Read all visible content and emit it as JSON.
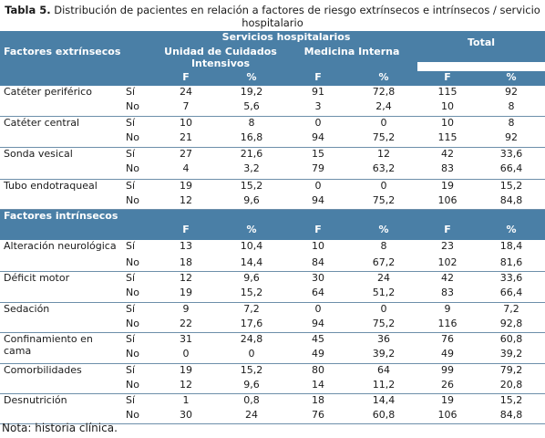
{
  "caption": {
    "label": "Tabla 5.",
    "text": " Distribución de pacientes en relación a factores de riesgo extrínsecos e intrínsecos / servicio hospitalario"
  },
  "header": {
    "group": "Servicios hospitalarios",
    "extrinsic": "Factores extrínsecos",
    "uci": "Unidad de Cuidados Intensivos",
    "mi": "Medicina Interna",
    "total": "Total",
    "f": "F",
    "pct": "%"
  },
  "intrinsic_header": "Factores  intrínsecos",
  "extrinsic_rows": [
    {
      "label": "Catéter periférico",
      "si": {
        "tag": "Sí",
        "v": [
          "24",
          "19,2",
          "91",
          "72,8",
          "115",
          "92"
        ]
      },
      "no": {
        "tag": "No",
        "v": [
          "7",
          "5,6",
          "3",
          "2,4",
          "10",
          "8"
        ]
      }
    },
    {
      "label": "Catéter central",
      "si": {
        "tag": "Sí",
        "v": [
          "10",
          "8",
          "0",
          "0",
          "10",
          "8"
        ]
      },
      "no": {
        "tag": "No",
        "v": [
          "21",
          "16,8",
          "94",
          "75,2",
          "115",
          "92"
        ]
      }
    },
    {
      "label": "Sonda vesical",
      "si": {
        "tag": "Sí",
        "v": [
          "27",
          "21,6",
          "15",
          "12",
          "42",
          "33,6"
        ]
      },
      "no": {
        "tag": "No",
        "v": [
          "4",
          "3,2",
          "79",
          "63,2",
          "83",
          "66,4"
        ]
      }
    },
    {
      "label": "Tubo endotraqueal",
      "si": {
        "tag": "Sí",
        "v": [
          "19",
          "15,2",
          "0",
          "0",
          "19",
          "15,2"
        ]
      },
      "no": {
        "tag": "No",
        "v": [
          "12",
          "9,6",
          "94",
          "75,2",
          "106",
          "84,8"
        ]
      }
    }
  ],
  "intrinsic_rows": [
    {
      "label": "Alteración neurológica",
      "si": {
        "tag": "Sí",
        "v": [
          "13",
          "10,4",
          "10",
          "8",
          "23",
          "18,4"
        ]
      },
      "no": {
        "tag": "No",
        "v": [
          "18",
          "14,4",
          "84",
          "67,2",
          "102",
          "81,6"
        ]
      }
    },
    {
      "label": "Déficit motor",
      "si": {
        "tag": "Sí",
        "v": [
          "12",
          "9,6",
          "30",
          "24",
          "42",
          "33,6"
        ]
      },
      "no": {
        "tag": "No",
        "v": [
          "19",
          "15,2",
          "64",
          "51,2",
          "83",
          "66,4"
        ]
      }
    },
    {
      "label": "Sedación",
      "si": {
        "tag": "Sí",
        "v": [
          "9",
          "7,2",
          "0",
          "0",
          "9",
          "7,2"
        ]
      },
      "no": {
        "tag": "No",
        "v": [
          "22",
          "17,6",
          "94",
          "75,2",
          "116",
          "92,8"
        ]
      }
    },
    {
      "label": "Confinamiento en cama",
      "si": {
        "tag": "Sí",
        "v": [
          "31",
          "24,8",
          "45",
          "36",
          "76",
          "60,8"
        ]
      },
      "no": {
        "tag": "No",
        "v": [
          "0",
          "0",
          "49",
          "39,2",
          "49",
          "39,2"
        ]
      }
    },
    {
      "label": "Comorbilidades",
      "si": {
        "tag": "Sí",
        "v": [
          "19",
          "15,2",
          "80",
          "64",
          "99",
          "79,2"
        ]
      },
      "no": {
        "tag": "No",
        "v": [
          "12",
          "9,6",
          "14",
          "11,2",
          "26",
          "20,8"
        ]
      }
    },
    {
      "label": "Desnutrición",
      "si": {
        "tag": "Sí",
        "v": [
          "1",
          "0,8",
          "18",
          "14,4",
          "19",
          "15,2"
        ]
      },
      "no": {
        "tag": "No",
        "v": [
          "30",
          "24",
          "76",
          "60,8",
          "106",
          "84,8"
        ]
      }
    }
  ],
  "note": "Nota: historia clínica."
}
